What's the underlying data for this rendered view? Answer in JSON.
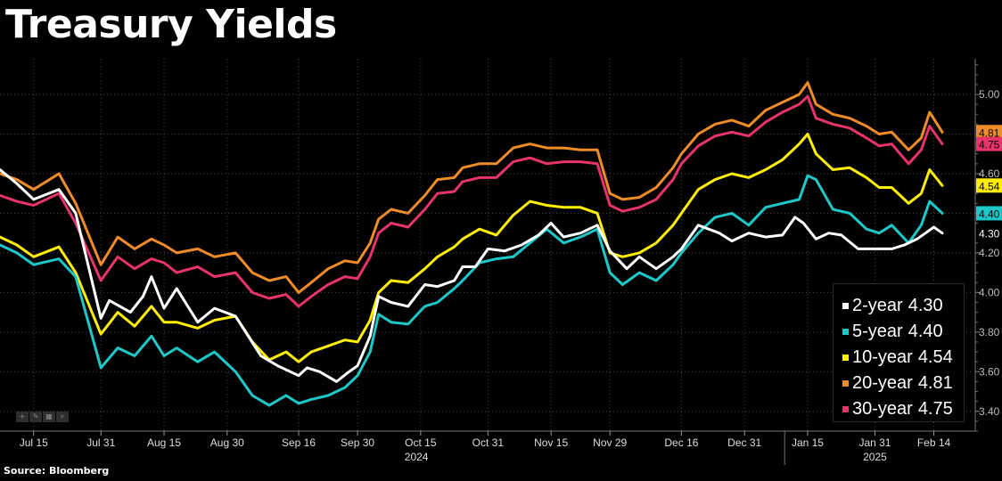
{
  "title": "Treasury Yields",
  "source": "Source: Bloomberg",
  "toolbar_icons": [
    "plus-icon",
    "pencil-icon",
    "grid-icon",
    "magnifier-icon"
  ],
  "chart_data": {
    "type": "line",
    "title": "Treasury Yields",
    "xlabel": "",
    "ylabel": "",
    "ylim": [
      3.3,
      5.18
    ],
    "y_ticks": [
      "3.40",
      "3.60",
      "3.80",
      "4.00",
      "4.20",
      "4.40",
      "4.60",
      "4.80",
      "5.00"
    ],
    "x_ticks": [
      {
        "label": "Jul 15",
        "day": 14
      },
      {
        "label": "Jul 31",
        "day": 30
      },
      {
        "label": "Aug 15",
        "day": 45
      },
      {
        "label": "Aug 30",
        "day": 60
      },
      {
        "label": "Sep 16",
        "day": 77
      },
      {
        "label": "Sep 30",
        "day": 91
      },
      {
        "label": "Oct 15",
        "day": 106
      },
      {
        "label": "Oct 31",
        "day": 122
      },
      {
        "label": "Nov 15",
        "day": 137
      },
      {
        "label": "Nov 29",
        "day": 151
      },
      {
        "label": "Dec 16",
        "day": 168
      },
      {
        "label": "Dec 31",
        "day": 183
      },
      {
        "label": "Jan 15",
        "day": 198
      },
      {
        "label": "Jan 31",
        "day": 214
      },
      {
        "label": "Feb 14",
        "day": 228
      }
    ],
    "year_labels": [
      {
        "label": "2024",
        "day": 105
      },
      {
        "label": "2025",
        "day": 214
      }
    ],
    "x_range_days": [
      6,
      237
    ],
    "grid": true,
    "legend_position": "bottom-right",
    "series": [
      {
        "name": "2-year",
        "last": "4.30",
        "color": "#ffffff",
        "label_bg": "#000000",
        "label_fg": "#ffffff",
        "x": [
          6,
          10,
          14,
          20,
          24,
          30,
          32,
          37,
          40,
          42,
          45,
          48,
          53,
          57,
          62,
          68,
          72,
          77,
          79,
          82,
          86,
          89,
          91,
          94,
          96,
          99,
          103,
          107,
          110,
          114,
          116,
          119,
          122,
          126,
          130,
          134,
          137,
          140,
          144,
          148,
          151,
          155,
          158,
          162,
          166,
          168,
          172,
          177,
          180,
          184,
          188,
          192,
          195,
          197,
          200,
          203,
          206,
          210,
          214,
          218,
          221,
          224,
          226,
          228,
          230
        ],
        "values": [
          4.62,
          4.55,
          4.47,
          4.52,
          4.4,
          3.87,
          3.96,
          3.9,
          3.98,
          4.08,
          3.92,
          4.02,
          3.85,
          3.92,
          3.88,
          3.68,
          3.63,
          3.58,
          3.62,
          3.6,
          3.55,
          3.6,
          3.63,
          3.78,
          3.98,
          3.95,
          3.93,
          4.04,
          4.03,
          4.06,
          4.13,
          4.13,
          4.22,
          4.21,
          4.24,
          4.29,
          4.35,
          4.28,
          4.3,
          4.34,
          4.21,
          4.12,
          4.18,
          4.12,
          4.18,
          4.22,
          4.34,
          4.3,
          4.26,
          4.3,
          4.28,
          4.29,
          4.38,
          4.35,
          4.27,
          4.3,
          4.29,
          4.22,
          4.22,
          4.22,
          4.24,
          4.27,
          4.3,
          4.33,
          4.3
        ]
      },
      {
        "name": "5-year",
        "last": "4.40",
        "color": "#1ec8c8",
        "label_bg": "#1ec8c8",
        "label_fg": "#000000",
        "x": [
          6,
          10,
          14,
          20,
          24,
          30,
          34,
          38,
          42,
          45,
          48,
          53,
          57,
          62,
          66,
          70,
          74,
          77,
          80,
          84,
          88,
          91,
          94,
          96,
          99,
          103,
          107,
          110,
          114,
          116,
          120,
          124,
          128,
          132,
          136,
          140,
          144,
          148,
          151,
          154,
          158,
          162,
          166,
          168,
          172,
          176,
          180,
          184,
          188,
          192,
          196,
          198,
          200,
          204,
          208,
          212,
          215,
          218,
          222,
          225,
          227,
          230
        ],
        "values": [
          4.24,
          4.2,
          4.14,
          4.17,
          4.08,
          3.62,
          3.72,
          3.68,
          3.78,
          3.68,
          3.72,
          3.65,
          3.7,
          3.6,
          3.48,
          3.43,
          3.48,
          3.44,
          3.46,
          3.48,
          3.52,
          3.58,
          3.7,
          3.89,
          3.85,
          3.84,
          3.93,
          3.95,
          4.02,
          4.06,
          4.15,
          4.17,
          4.18,
          4.25,
          4.32,
          4.25,
          4.28,
          4.32,
          4.1,
          4.04,
          4.1,
          4.06,
          4.14,
          4.2,
          4.3,
          4.38,
          4.4,
          4.34,
          4.43,
          4.45,
          4.47,
          4.59,
          4.57,
          4.42,
          4.4,
          4.32,
          4.3,
          4.34,
          4.25,
          4.34,
          4.46,
          4.4
        ]
      },
      {
        "name": "10-year",
        "last": "4.54",
        "color": "#ffee00",
        "label_bg": "#ffee00",
        "label_fg": "#000000",
        "x": [
          6,
          10,
          14,
          20,
          24,
          30,
          34,
          38,
          42,
          45,
          48,
          53,
          57,
          62,
          66,
          70,
          74,
          77,
          80,
          84,
          88,
          91,
          94,
          96,
          99,
          103,
          107,
          110,
          114,
          116,
          120,
          124,
          128,
          132,
          136,
          140,
          144,
          148,
          151,
          154,
          158,
          162,
          166,
          168,
          172,
          176,
          180,
          184,
          188,
          192,
          196,
          198,
          200,
          204,
          208,
          212,
          215,
          218,
          222,
          225,
          227,
          230
        ],
        "values": [
          4.28,
          4.24,
          4.18,
          4.23,
          4.1,
          3.79,
          3.9,
          3.83,
          3.93,
          3.85,
          3.85,
          3.82,
          3.86,
          3.88,
          3.75,
          3.66,
          3.7,
          3.65,
          3.7,
          3.73,
          3.76,
          3.75,
          3.86,
          4.0,
          4.06,
          4.05,
          4.12,
          4.18,
          4.23,
          4.27,
          4.32,
          4.29,
          4.39,
          4.46,
          4.44,
          4.43,
          4.43,
          4.4,
          4.2,
          4.18,
          4.2,
          4.25,
          4.34,
          4.4,
          4.52,
          4.57,
          4.6,
          4.58,
          4.62,
          4.67,
          4.75,
          4.8,
          4.7,
          4.62,
          4.63,
          4.58,
          4.53,
          4.53,
          4.45,
          4.5,
          4.62,
          4.54
        ]
      },
      {
        "name": "20-year",
        "last": "4.81",
        "color": "#f08c28",
        "label_bg": "#f08c28",
        "label_fg": "#000000",
        "x": [
          6,
          10,
          14,
          20,
          24,
          30,
          34,
          38,
          42,
          45,
          48,
          53,
          57,
          62,
          66,
          70,
          74,
          77,
          80,
          84,
          88,
          91,
          94,
          96,
          99,
          103,
          107,
          110,
          114,
          116,
          120,
          124,
          128,
          132,
          136,
          140,
          144,
          148,
          151,
          154,
          158,
          162,
          166,
          168,
          172,
          176,
          180,
          184,
          188,
          192,
          196,
          198,
          200,
          204,
          208,
          212,
          215,
          218,
          222,
          225,
          227,
          230
        ],
        "values": [
          4.6,
          4.57,
          4.52,
          4.6,
          4.45,
          4.14,
          4.28,
          4.22,
          4.27,
          4.24,
          4.2,
          4.22,
          4.18,
          4.2,
          4.1,
          4.06,
          4.08,
          4.0,
          4.05,
          4.12,
          4.16,
          4.15,
          4.25,
          4.37,
          4.42,
          4.4,
          4.49,
          4.57,
          4.58,
          4.63,
          4.65,
          4.65,
          4.73,
          4.75,
          4.73,
          4.73,
          4.72,
          4.72,
          4.5,
          4.47,
          4.48,
          4.53,
          4.63,
          4.7,
          4.8,
          4.85,
          4.87,
          4.84,
          4.92,
          4.96,
          5.0,
          5.06,
          4.95,
          4.9,
          4.88,
          4.84,
          4.8,
          4.81,
          4.72,
          4.78,
          4.91,
          4.81
        ]
      },
      {
        "name": "30-year",
        "last": "4.75",
        "color": "#e8336b",
        "label_bg": "#e8336b",
        "label_fg": "#000000",
        "x": [
          6,
          10,
          14,
          20,
          24,
          30,
          34,
          38,
          42,
          45,
          48,
          53,
          57,
          62,
          66,
          70,
          74,
          77,
          80,
          84,
          88,
          91,
          94,
          96,
          99,
          103,
          107,
          110,
          114,
          116,
          120,
          124,
          128,
          132,
          136,
          140,
          144,
          148,
          151,
          154,
          158,
          162,
          166,
          168,
          172,
          176,
          180,
          184,
          188,
          192,
          196,
          198,
          200,
          204,
          208,
          212,
          215,
          218,
          222,
          225,
          227,
          230
        ],
        "values": [
          4.49,
          4.46,
          4.44,
          4.5,
          4.35,
          4.06,
          4.18,
          4.12,
          4.17,
          4.15,
          4.1,
          4.13,
          4.08,
          4.1,
          4.0,
          3.97,
          3.99,
          3.93,
          3.98,
          4.04,
          4.08,
          4.07,
          4.18,
          4.3,
          4.35,
          4.33,
          4.42,
          4.5,
          4.51,
          4.56,
          4.58,
          4.58,
          4.66,
          4.68,
          4.65,
          4.66,
          4.66,
          4.65,
          4.44,
          4.41,
          4.43,
          4.47,
          4.57,
          4.65,
          4.74,
          4.79,
          4.81,
          4.79,
          4.86,
          4.91,
          4.95,
          4.99,
          4.88,
          4.85,
          4.83,
          4.78,
          4.74,
          4.75,
          4.65,
          4.72,
          4.84,
          4.75
        ]
      }
    ]
  }
}
